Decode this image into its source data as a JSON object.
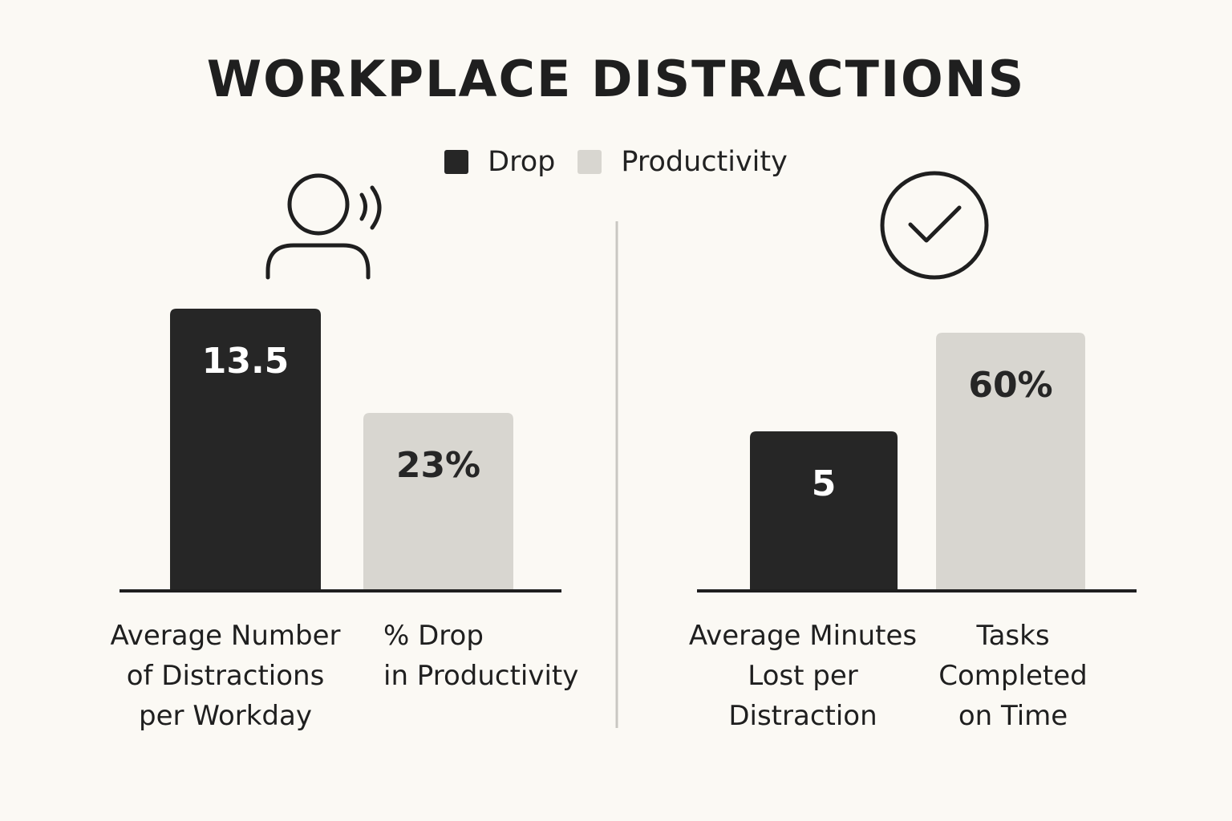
{
  "title": "WORKPLACE DISTRACTIONS",
  "legend": [
    {
      "label": "Drop",
      "color": "#262626"
    },
    {
      "label": "Productivity",
      "color": "#d8d6d0"
    }
  ],
  "icons": [
    "person-speaking-icon",
    "checkmark-circle-icon"
  ],
  "colors": {
    "dark_bar": "#262626",
    "light_bar": "#d8d6d0",
    "background": "#fbf9f4",
    "divider": "#c9c7c2"
  },
  "chart_data": [
    {
      "type": "bar",
      "title": "",
      "categories": [
        "Average Number of Distractions per Workday",
        "% Drop in Productivity"
      ],
      "values": [
        13.5,
        23
      ],
      "value_labels": [
        "13.5",
        "23%"
      ],
      "category_label_lines": [
        [
          "Average Number",
          "of Distractions",
          "per Workday"
        ],
        [
          "% Drop",
          "in Productivity"
        ]
      ],
      "bar_styles": [
        "dark",
        "light"
      ]
    },
    {
      "type": "bar",
      "title": "",
      "categories": [
        "Average Minutes Lost per Distraction",
        "Tasks Completed on Time"
      ],
      "values": [
        5,
        60
      ],
      "value_labels": [
        "5",
        "60%"
      ],
      "category_label_lines": [
        [
          "Average Minutes",
          "Lost per",
          "Distraction"
        ],
        [
          "Tasks",
          "Completed",
          "on Time"
        ]
      ],
      "bar_styles": [
        "dark",
        "light"
      ]
    }
  ]
}
